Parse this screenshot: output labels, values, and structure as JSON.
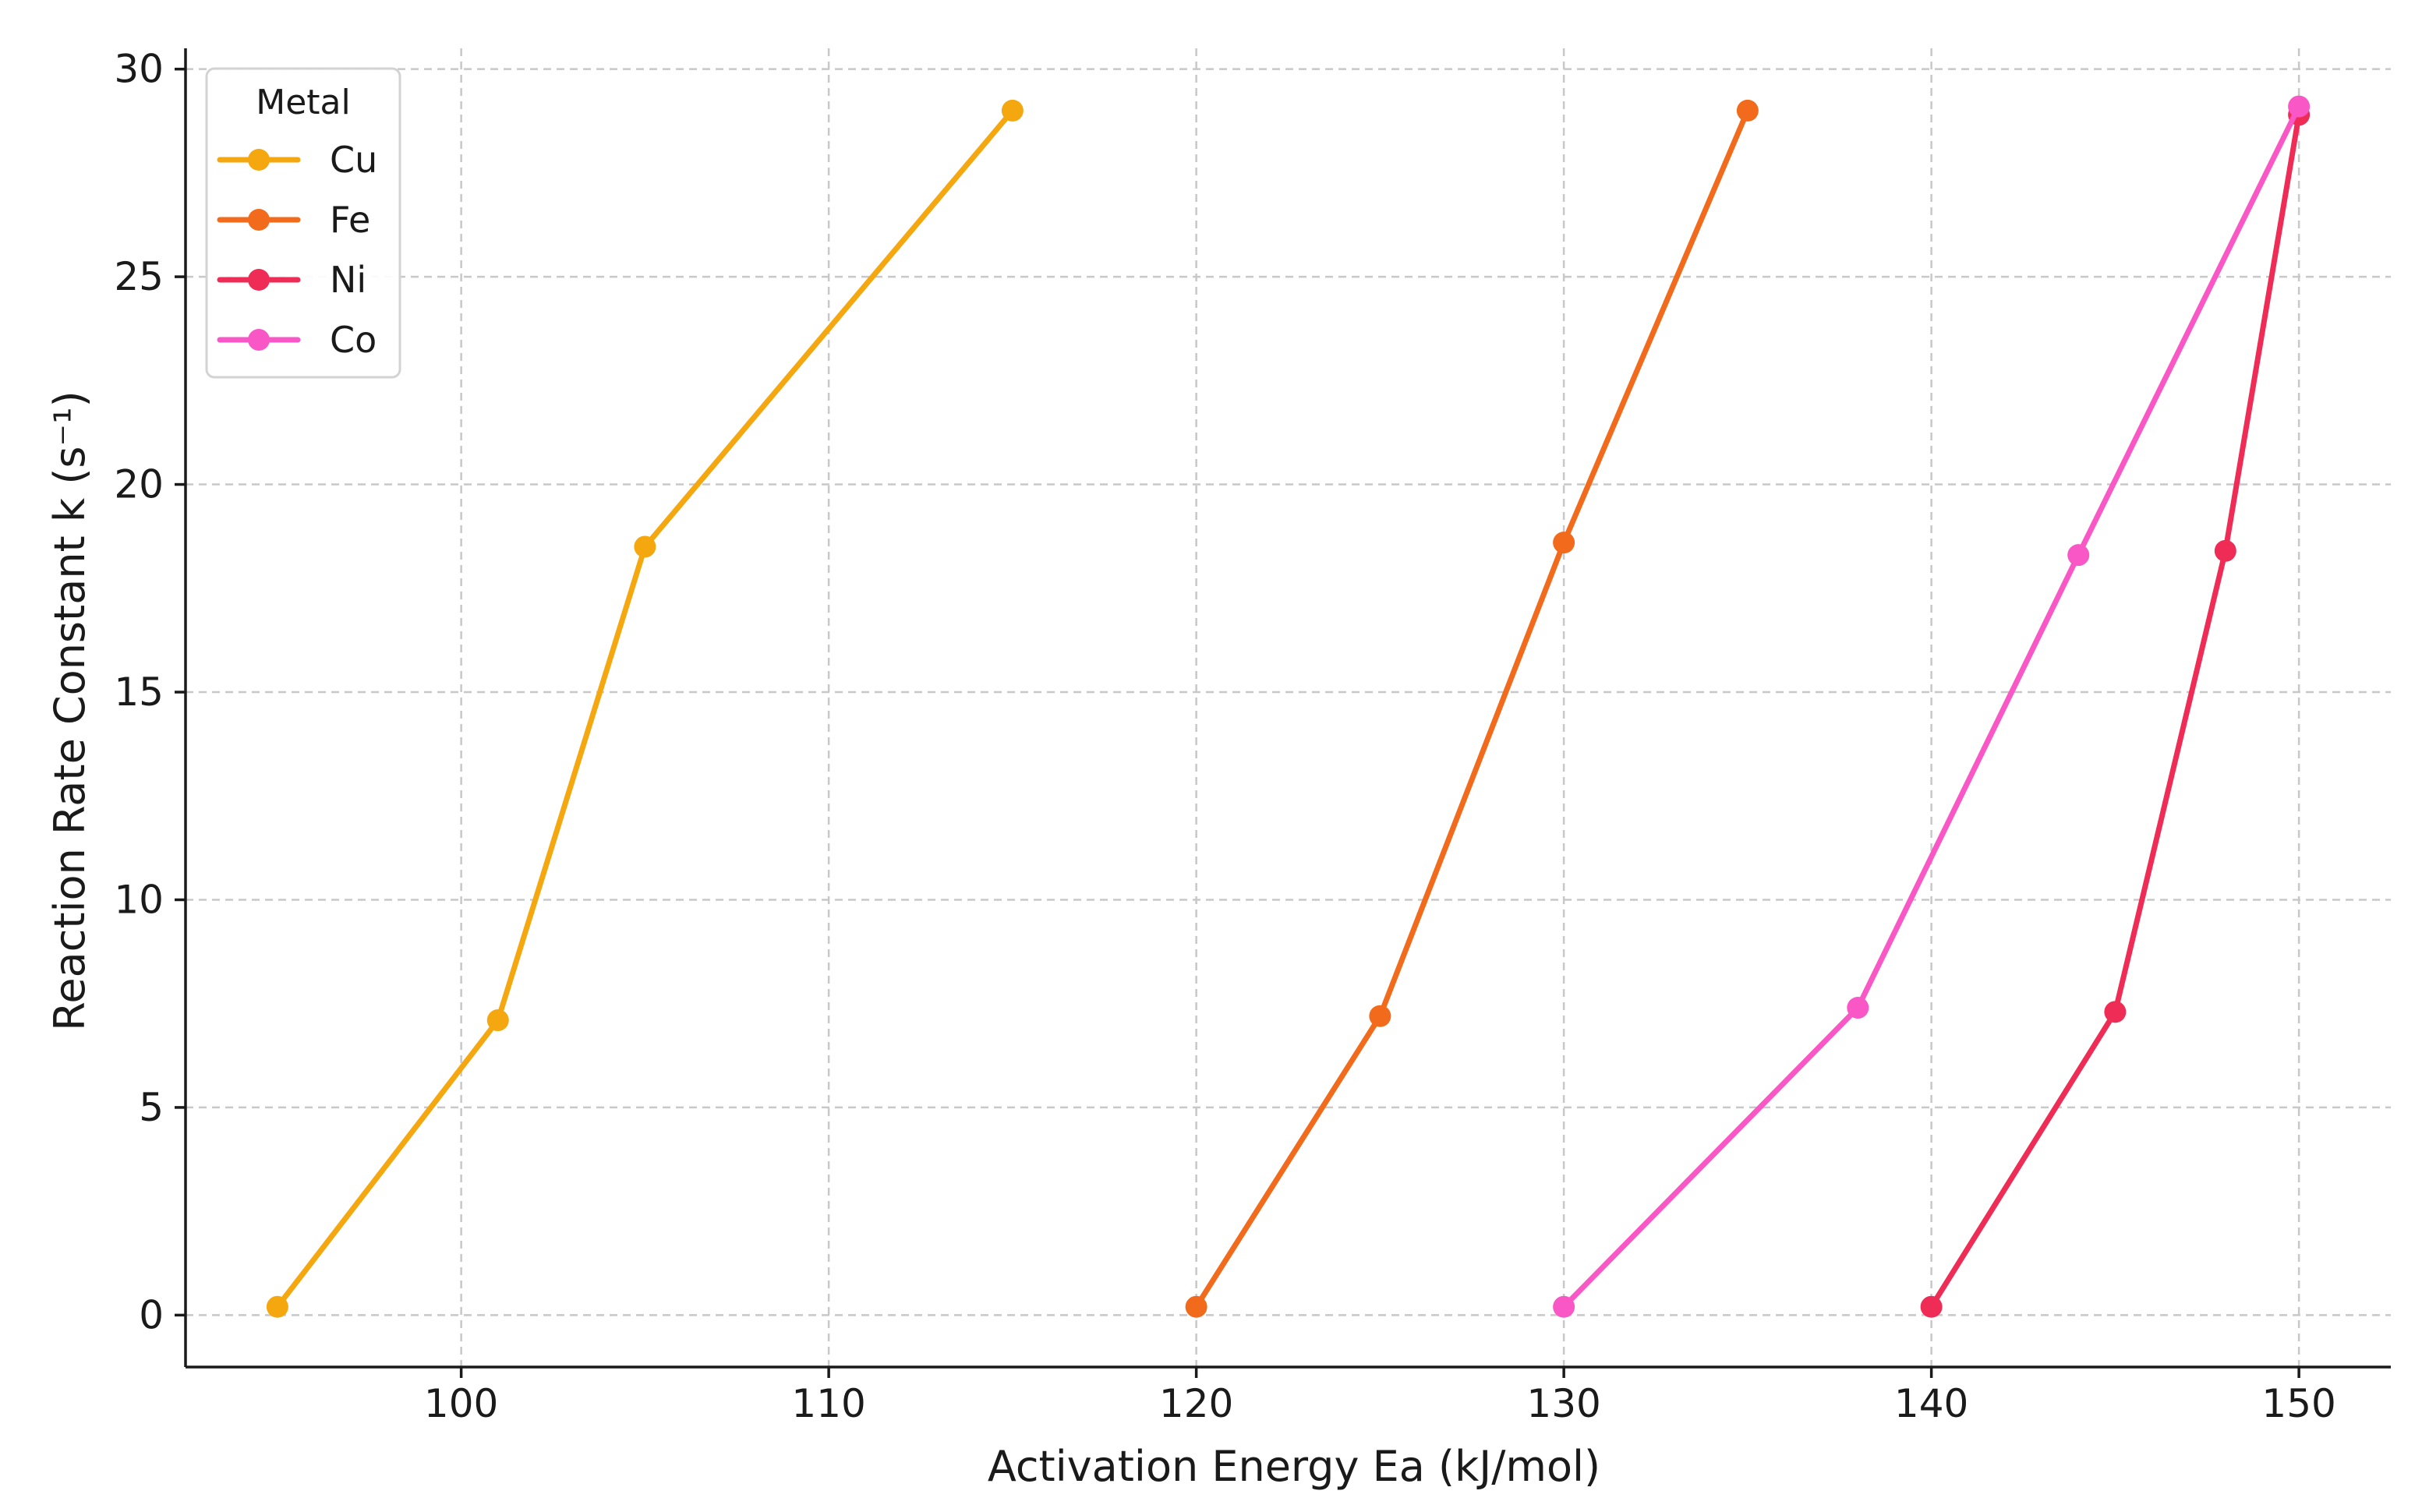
{
  "chart_data": {
    "type": "line",
    "title": "",
    "xlabel": "Activation Energy Ea (kJ/mol)",
    "ylabel": "Reaction Rate Constant k (s⁻¹)",
    "xlim": [
      92.5,
      152.5
    ],
    "ylim": [
      -1.25,
      30.5
    ],
    "xticks": [
      100,
      110,
      120,
      130,
      140,
      150
    ],
    "yticks": [
      0,
      5,
      10,
      15,
      20,
      25,
      30
    ],
    "grid": true,
    "legend": {
      "title": "Metal",
      "placement": "top-left"
    },
    "series": [
      {
        "name": "Cu",
        "color": "#F5A70F",
        "x": [
          95,
          101,
          105,
          115
        ],
        "y": [
          0.2,
          7.1,
          18.5,
          29.0
        ]
      },
      {
        "name": "Fe",
        "color": "#F26A1B",
        "x": [
          120,
          125,
          130,
          135
        ],
        "y": [
          0.2,
          7.2,
          18.6,
          29.0
        ]
      },
      {
        "name": "Ni",
        "color": "#EE2C55",
        "x": [
          140,
          145,
          148,
          150
        ],
        "y": [
          0.2,
          7.3,
          18.4,
          28.9
        ]
      },
      {
        "name": "Co",
        "color": "#F957C6",
        "x": [
          130,
          138,
          144,
          150
        ],
        "y": [
          0.2,
          7.4,
          18.3,
          29.1
        ]
      }
    ]
  }
}
